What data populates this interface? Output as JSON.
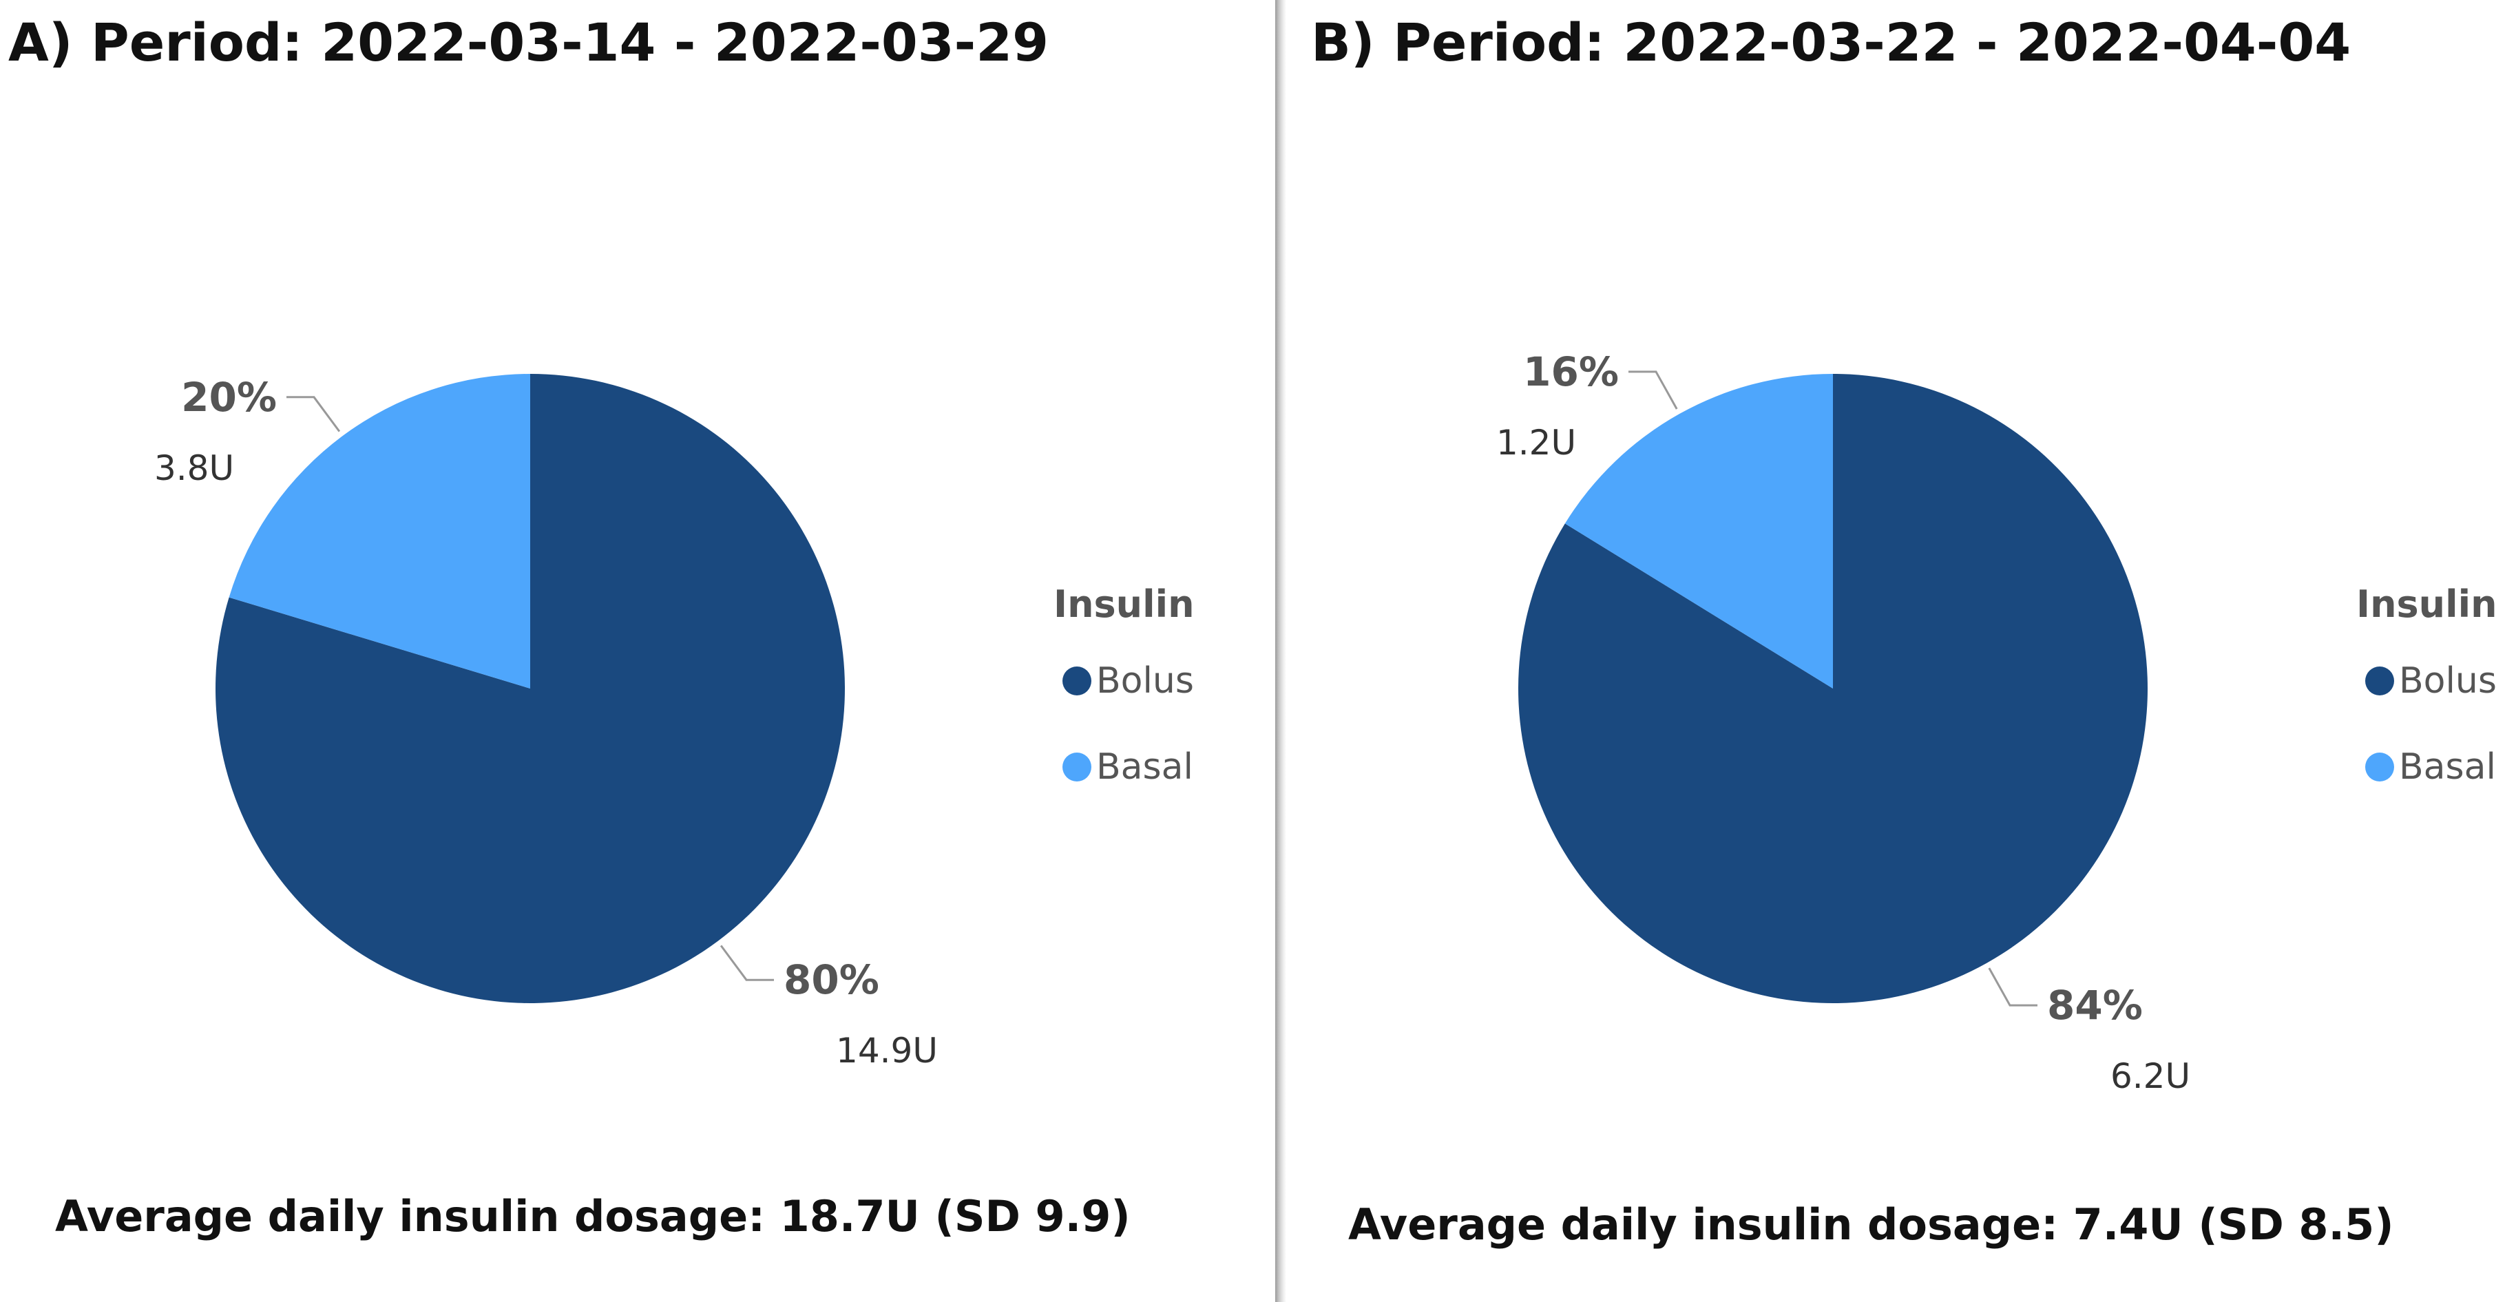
{
  "chart_data": [
    {
      "type": "pie",
      "title": "A) Period: 2022-03-14 - 2022-03-29",
      "legend_title": "Insulin",
      "legend_position": "right",
      "slices": [
        {
          "name": "Bolus",
          "value": 14.9,
          "percent_label": "80%",
          "value_label": "14.9U",
          "color": "#1A497F"
        },
        {
          "name": "Basal",
          "value": 3.8,
          "percent_label": "20%",
          "value_label": "3.8U",
          "color": "#4EA6FC"
        }
      ],
      "footer": "Average daily insulin dosage: 18.7U (SD 9.9)"
    },
    {
      "type": "pie",
      "title": "B) Period: 2022-03-22 - 2022-04-04",
      "legend_title": "Insulin",
      "legend_position": "right",
      "slices": [
        {
          "name": "Bolus",
          "value": 6.2,
          "percent_label": "84%",
          "value_label": "6.2U",
          "color": "#1A497F"
        },
        {
          "name": "Basal",
          "value": 1.2,
          "percent_label": "16%",
          "value_label": "1.2U",
          "color": "#4EA6FC"
        }
      ],
      "footer": "Average daily insulin dosage: 7.4U (SD 8.5)"
    }
  ],
  "colors": {
    "title_text": "#111111",
    "label_text": "#555555",
    "value_text": "#333333",
    "leader_line": "#999999",
    "legend_text": "#555555"
  }
}
